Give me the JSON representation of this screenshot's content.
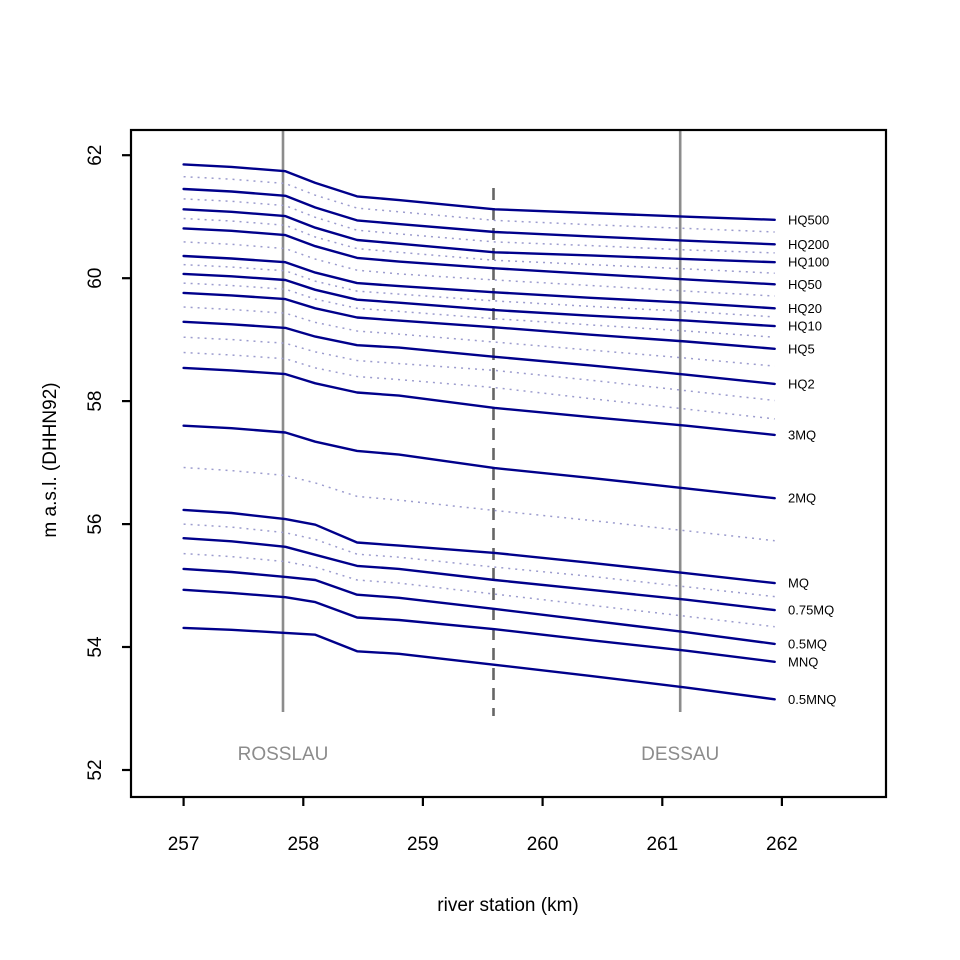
{
  "figure": {
    "xlabel": "river station (km)",
    "ylabel": "m a.s.l. (DHHN92)"
  },
  "colors": {
    "solid_series": "#00008B",
    "dotted_series": "#9C9CCE",
    "station_line": "#8C8C8C",
    "dashed_marker": "#666666",
    "station_text": "#8C8C8C",
    "axis": "#000000",
    "background": "#FFFFFF"
  },
  "chart_data": {
    "type": "line",
    "title": "",
    "xlabel": "river station (km)",
    "ylabel": "m a.s.l. (DHHN92)",
    "xlim": [
      256.56,
      262.87
    ],
    "ylim": [
      51.56,
      62.41
    ],
    "x_ticks": [
      257,
      258,
      259,
      260,
      261,
      262
    ],
    "y_ticks": [
      52,
      54,
      56,
      58,
      60,
      62
    ],
    "grid": false,
    "legend_position": "right-margin-labels",
    "x": [
      257.0,
      257.4,
      257.85,
      258.1,
      258.45,
      258.8,
      259.6,
      260.4,
      261.2,
      261.94
    ],
    "series": [
      {
        "name": "HQ500",
        "label": "HQ500",
        "style": "solid",
        "values": [
          61.85,
          61.81,
          61.74,
          61.55,
          61.33,
          61.27,
          61.12,
          61.06,
          61.0,
          60.95
        ]
      },
      {
        "name": "interp-1",
        "label": null,
        "style": "dotted",
        "values": [
          61.65,
          61.61,
          61.54,
          61.35,
          61.14,
          61.08,
          60.94,
          60.87,
          60.81,
          60.75
        ]
      },
      {
        "name": "HQ200",
        "label": "HQ200",
        "style": "solid",
        "values": [
          61.45,
          61.41,
          61.34,
          61.15,
          60.94,
          60.88,
          60.75,
          60.68,
          60.61,
          60.55
        ]
      },
      {
        "name": "interp-2",
        "label": null,
        "style": "dotted",
        "values": [
          61.29,
          61.25,
          61.18,
          60.99,
          60.78,
          60.72,
          60.59,
          60.53,
          60.46,
          60.41
        ]
      },
      {
        "name": "HQ100",
        "label": "HQ100",
        "style": "solid",
        "values": [
          61.12,
          61.08,
          61.01,
          60.82,
          60.62,
          60.56,
          60.42,
          60.37,
          60.31,
          60.26
        ]
      },
      {
        "name": "interp-3",
        "label": null,
        "style": "dotted",
        "values": [
          60.97,
          60.93,
          60.86,
          60.67,
          60.48,
          60.42,
          60.29,
          60.22,
          60.15,
          60.08
        ]
      },
      {
        "name": "HQ50",
        "label": "HQ50",
        "style": "solid",
        "values": [
          60.81,
          60.77,
          60.7,
          60.52,
          60.33,
          60.27,
          60.16,
          60.07,
          59.98,
          59.9
        ]
      },
      {
        "name": "interp-4",
        "label": null,
        "style": "dotted",
        "values": [
          60.59,
          60.55,
          60.48,
          60.31,
          60.13,
          60.07,
          59.97,
          59.88,
          59.79,
          59.71
        ]
      },
      {
        "name": "HQ20",
        "label": "HQ20",
        "style": "solid",
        "values": [
          60.36,
          60.32,
          60.26,
          60.09,
          59.92,
          59.87,
          59.77,
          59.68,
          59.6,
          59.51
        ]
      },
      {
        "name": "interp-5",
        "label": null,
        "style": "dotted",
        "values": [
          60.22,
          60.18,
          60.12,
          59.95,
          59.79,
          59.74,
          59.63,
          59.54,
          59.46,
          59.37
        ]
      },
      {
        "name": "HQ10",
        "label": "HQ10",
        "style": "solid",
        "values": [
          60.07,
          60.03,
          59.97,
          59.81,
          59.65,
          59.6,
          59.48,
          59.39,
          59.31,
          59.22
        ]
      },
      {
        "name": "interp-6",
        "label": null,
        "style": "dotted",
        "values": [
          59.92,
          59.88,
          59.82,
          59.66,
          59.51,
          59.46,
          59.34,
          59.24,
          59.14,
          59.04
        ]
      },
      {
        "name": "HQ5",
        "label": "HQ5",
        "style": "solid",
        "values": [
          59.76,
          59.72,
          59.66,
          59.51,
          59.36,
          59.31,
          59.2,
          59.08,
          58.97,
          58.85
        ]
      },
      {
        "name": "interp-7",
        "label": null,
        "style": "dotted",
        "values": [
          59.53,
          59.49,
          59.43,
          59.28,
          59.14,
          59.09,
          58.96,
          58.83,
          58.7,
          58.57
        ]
      },
      {
        "name": "HQ2",
        "label": "HQ2",
        "style": "solid",
        "values": [
          59.29,
          59.25,
          59.19,
          59.05,
          58.91,
          58.87,
          58.72,
          58.58,
          58.43,
          58.28
        ]
      },
      {
        "name": "interp-8",
        "label": null,
        "style": "dotted",
        "values": [
          59.04,
          59.0,
          58.94,
          58.8,
          58.66,
          58.61,
          58.5,
          58.34,
          58.17,
          58.01
        ]
      },
      {
        "name": "interp-9",
        "label": null,
        "style": "dotted",
        "values": [
          58.79,
          58.75,
          58.69,
          58.54,
          58.4,
          58.35,
          58.22,
          58.04,
          57.87,
          57.71
        ]
      },
      {
        "name": "3MQ",
        "label": "3MQ",
        "style": "solid",
        "values": [
          58.54,
          58.5,
          58.44,
          58.29,
          58.14,
          58.09,
          57.89,
          57.74,
          57.6,
          57.45
        ]
      },
      {
        "name": "2MQ",
        "label": "2MQ",
        "style": "solid",
        "values": [
          57.6,
          57.56,
          57.49,
          57.34,
          57.19,
          57.13,
          56.91,
          56.75,
          56.58,
          56.42
        ]
      },
      {
        "name": "interp-10",
        "label": null,
        "style": "dotted",
        "values": [
          56.92,
          56.87,
          56.79,
          56.67,
          56.45,
          56.39,
          56.22,
          56.06,
          55.89,
          55.73
        ]
      },
      {
        "name": "MQ",
        "label": "MQ",
        "style": "solid",
        "values": [
          56.23,
          56.18,
          56.08,
          55.99,
          55.7,
          55.65,
          55.53,
          55.37,
          55.2,
          55.04
        ]
      },
      {
        "name": "interp-11",
        "label": null,
        "style": "dotted",
        "values": [
          56.0,
          55.95,
          55.86,
          55.75,
          55.51,
          55.46,
          55.3,
          55.15,
          54.98,
          54.82
        ]
      },
      {
        "name": "0.75MQ",
        "label": "0.75MQ",
        "style": "solid",
        "values": [
          55.77,
          55.72,
          55.63,
          55.5,
          55.32,
          55.27,
          55.09,
          54.93,
          54.77,
          54.6
        ]
      },
      {
        "name": "interp-12",
        "label": null,
        "style": "dotted",
        "values": [
          55.52,
          55.47,
          55.39,
          55.3,
          55.09,
          55.04,
          54.86,
          54.68,
          54.5,
          54.33
        ]
      },
      {
        "name": "0.5MQ",
        "label": "0.5MQ",
        "style": "solid",
        "values": [
          55.27,
          55.22,
          55.14,
          55.09,
          54.85,
          54.8,
          54.62,
          54.43,
          54.24,
          54.05
        ]
      },
      {
        "name": "MNQ",
        "label": "MNQ",
        "style": "solid",
        "values": [
          54.93,
          54.88,
          54.81,
          54.73,
          54.48,
          54.44,
          54.29,
          54.11,
          53.94,
          53.76
        ]
      },
      {
        "name": "0.5MNQ",
        "label": "0.5MNQ",
        "style": "solid",
        "values": [
          54.31,
          54.28,
          54.23,
          54.2,
          53.93,
          53.89,
          53.71,
          53.53,
          53.34,
          53.15
        ]
      }
    ],
    "annotations": [
      {
        "name": "ROSSLAU",
        "km": 257.83,
        "line_style": "solid",
        "labeled": true
      },
      {
        "name": "DESSAU",
        "km": 261.15,
        "line_style": "solid",
        "labeled": true
      },
      {
        "name": "",
        "km": 259.59,
        "line_style": "dashed",
        "labeled": false
      }
    ]
  }
}
